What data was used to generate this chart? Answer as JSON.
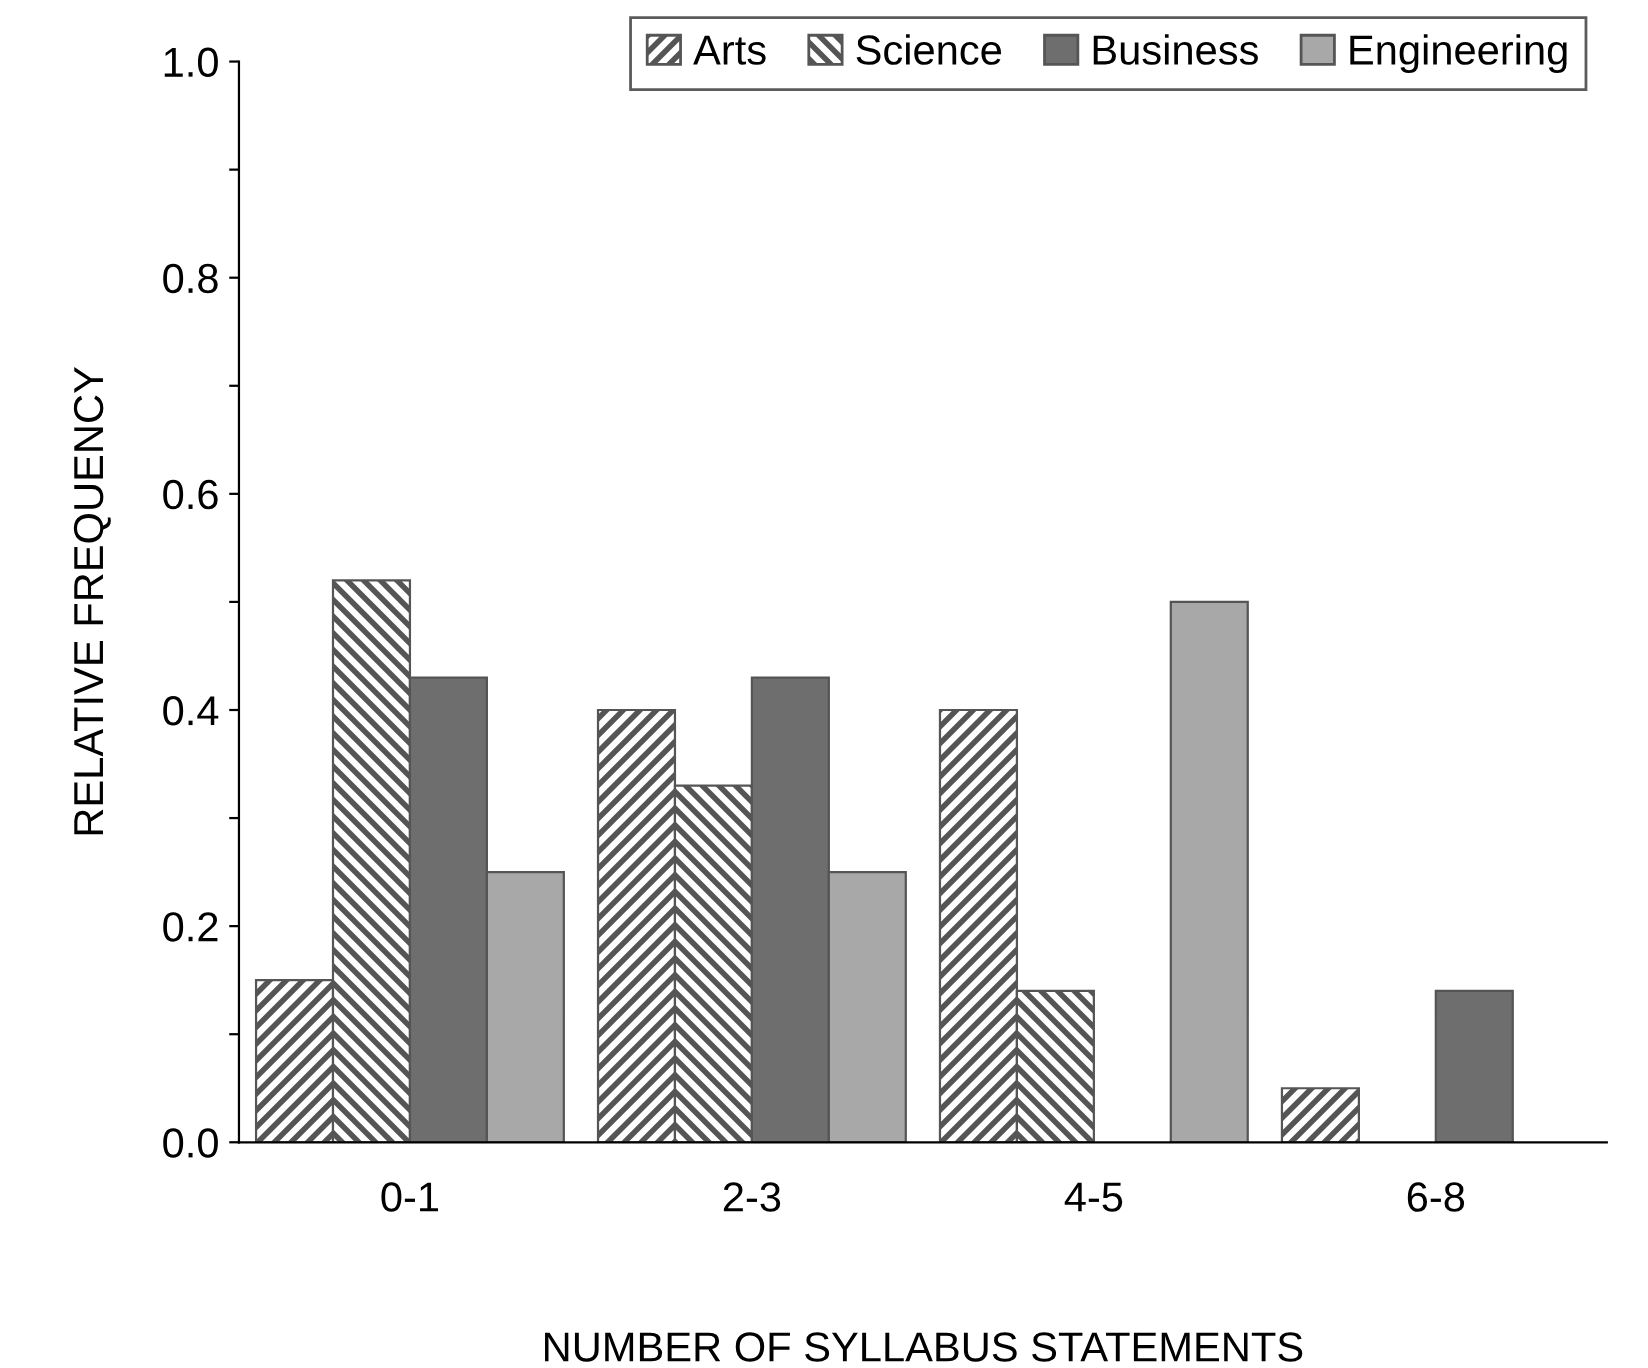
{
  "chart_data": {
    "type": "bar",
    "xlabel": "NUMBER OF SYLLABUS STATEMENTS",
    "ylabel": "RELATIVE FREQUENCY",
    "categories": [
      "0-1",
      "2-3",
      "4-5",
      "6-8"
    ],
    "series": [
      {
        "name": "Arts",
        "color": "#555555",
        "values": [
          0.15,
          0.4,
          0.4,
          0.05
        ]
      },
      {
        "name": "Science",
        "color": "#555555",
        "values": [
          0.52,
          0.33,
          0.14,
          0
        ]
      },
      {
        "name": "Business",
        "color": "#6e6e6e",
        "values": [
          0.43,
          0.43,
          0,
          0.14
        ]
      },
      {
        "name": "Engineering",
        "color": "#a8a8a8",
        "values": [
          0.25,
          0.25,
          0.5,
          0
        ]
      }
    ],
    "ylim": [
      0,
      1
    ],
    "yticks": [
      {
        "value": 0,
        "label": "0.0"
      },
      {
        "value": 0.1,
        "label": null
      },
      {
        "value": 0.2,
        "label": "0.2"
      },
      {
        "value": 0.3,
        "label": null
      },
      {
        "value": 0.4,
        "label": "0.4"
      },
      {
        "value": 0.5,
        "label": null
      },
      {
        "value": 0.6,
        "label": "0.6"
      },
      {
        "value": 0.7,
        "label": null
      },
      {
        "value": 0.8,
        "label": "0.8"
      },
      {
        "value": 0.9,
        "label": null
      },
      {
        "value": 1,
        "label": "1.0"
      }
    ],
    "grid": false,
    "legend": "top right"
  }
}
